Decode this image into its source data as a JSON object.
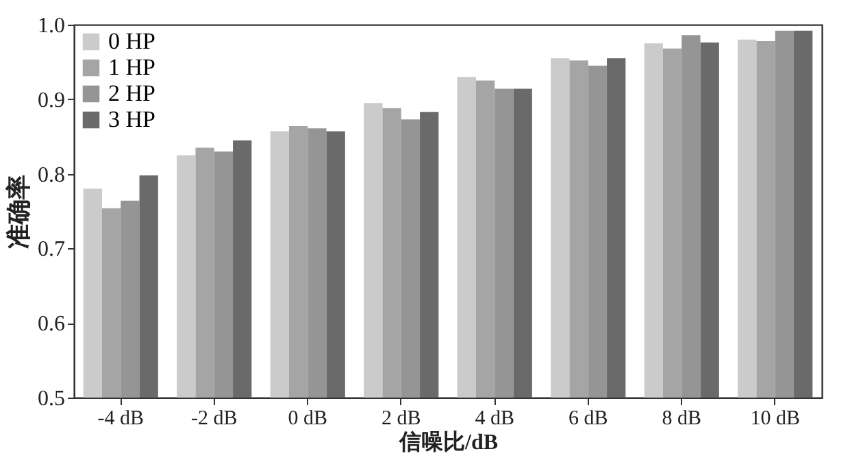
{
  "chart_data": {
    "type": "bar",
    "xlabel": "信噪比/dB",
    "ylabel": "准确率",
    "categories": [
      "-4 dB",
      "-2 dB",
      "0 dB",
      "2 dB",
      "4 dB",
      "6 dB",
      "8 dB",
      "10 dB"
    ],
    "series": [
      {
        "name": "0 HP",
        "color": "#cbcbcb",
        "values": [
          0.78,
          0.825,
          0.857,
          0.895,
          0.93,
          0.955,
          0.975,
          0.98
        ]
      },
      {
        "name": "1 HP",
        "color": "#a5a5a5",
        "values": [
          0.754,
          0.835,
          0.864,
          0.888,
          0.925,
          0.952,
          0.968,
          0.978
        ]
      },
      {
        "name": "2 HP",
        "color": "#959595",
        "values": [
          0.764,
          0.83,
          0.861,
          0.873,
          0.914,
          0.945,
          0.986,
          0.992
        ]
      },
      {
        "name": "3 HP",
        "color": "#6a6a6a",
        "values": [
          0.798,
          0.845,
          0.857,
          0.883,
          0.914,
          0.955,
          0.976,
          0.992
        ]
      }
    ],
    "ylim": [
      0.5,
      1.0
    ],
    "yticks": [
      0.5,
      0.6,
      0.7,
      0.8,
      0.9,
      {
        "value": 1,
        "label": "1.0"
      }
    ],
    "legend": "top left"
  }
}
